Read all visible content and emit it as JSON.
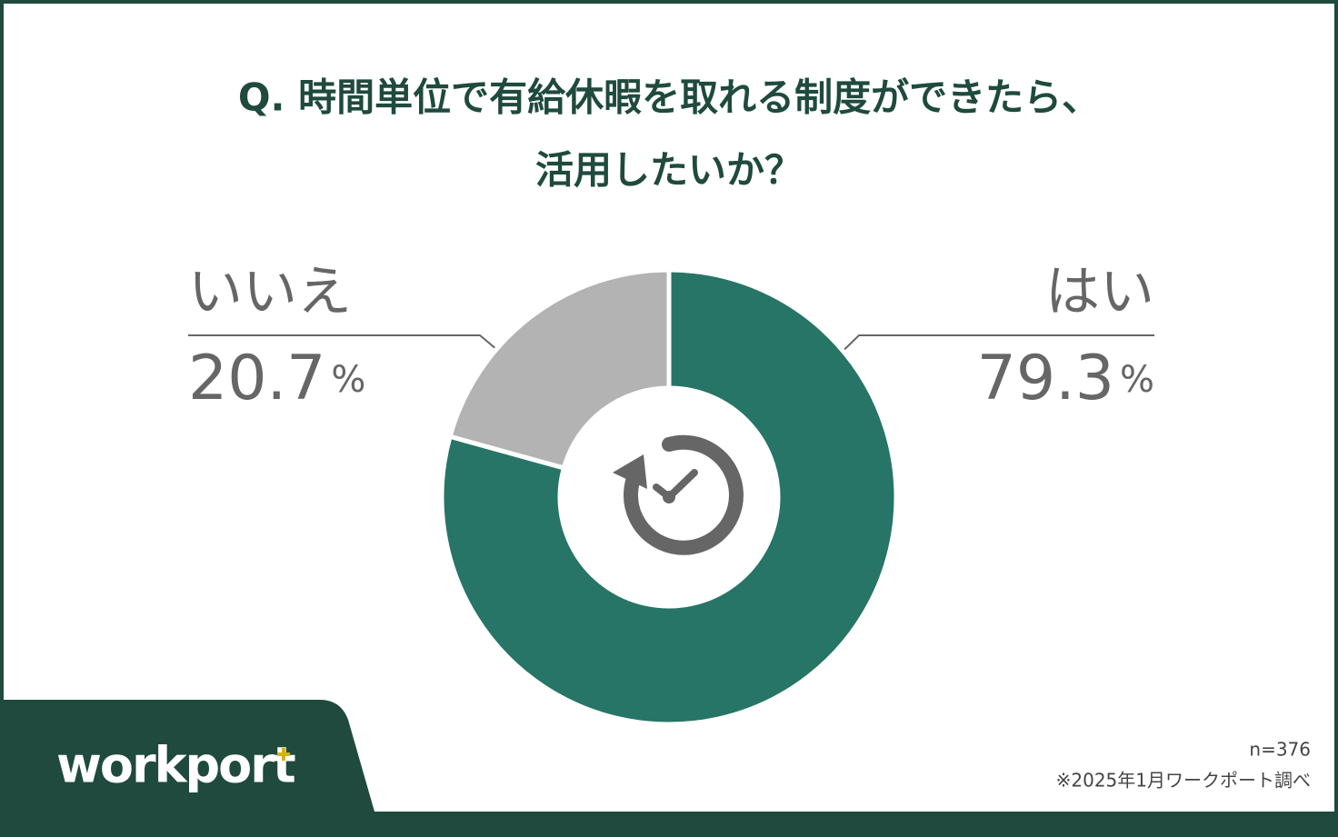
{
  "chart_data": {
    "type": "donut",
    "title": [
      "Q. 時間単位で有給休暇を取れる制度ができたら、",
      "活用したいか？"
    ],
    "categories": [
      "はい",
      "いいえ"
    ],
    "values": [
      79.3,
      20.7
    ],
    "unit": "%",
    "colors": [
      "#267566",
      "#b3b3b3"
    ],
    "note": [
      "n=376",
      "※2025年1月ワークポート調べ"
    ],
    "logo": "workport"
  }
}
